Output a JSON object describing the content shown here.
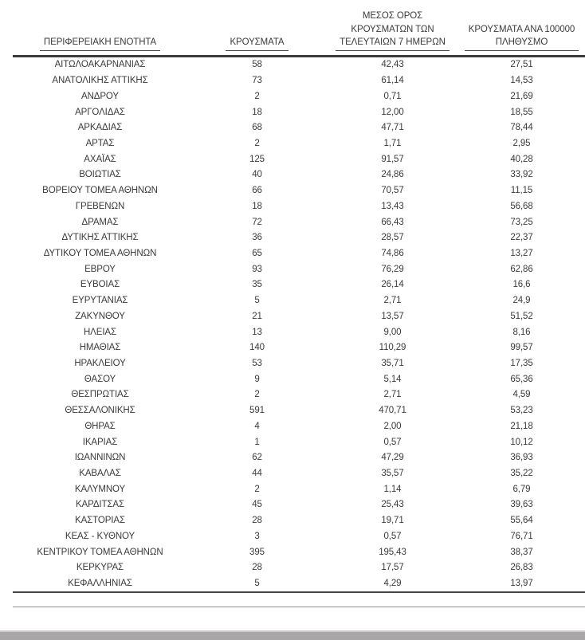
{
  "colors": {
    "text": "#3b3b3b",
    "rule": "#3a3a3a",
    "footnote_rule": "#8f8f8f",
    "bottom_bar": "#a8a6a6"
  },
  "table": {
    "headers": {
      "region": "ΠΕΡΙΦΕΡΕΙΑΚΗ ΕΝΟΤΗΤΑ",
      "cases": "ΚΡΟΥΣΜΑΤΑ",
      "avg7": "ΜΕΣΟΣ ΟΡΟΣ\nΚΡΟΥΣΜΑΤΩΝ ΤΩΝ\nΤΕΛΕΥΤΑΙΩΝ 7 ΗΜΕΡΩΝ",
      "per100k": "ΚΡΟΥΣΜΑΤΑ ΑΝΑ 100000\nΠΛΗΘΥΣΜΟ"
    },
    "rows": [
      {
        "region": "ΑΙΤΩΛΟΑΚΑΡΝΑΝΙΑΣ",
        "cases": "58",
        "avg7": "42,43",
        "per100k": "27,51"
      },
      {
        "region": "ΑΝΑΤΟΛΙΚΗΣ ΑΤΤΙΚΗΣ",
        "cases": "73",
        "avg7": "61,14",
        "per100k": "14,53"
      },
      {
        "region": "ΑΝΔΡΟΥ",
        "cases": "2",
        "avg7": "0,71",
        "per100k": "21,69"
      },
      {
        "region": "ΑΡΓΟΛΙΔΑΣ",
        "cases": "18",
        "avg7": "12,00",
        "per100k": "18,55"
      },
      {
        "region": "ΑΡΚΑΔΙΑΣ",
        "cases": "68",
        "avg7": "47,71",
        "per100k": "78,44"
      },
      {
        "region": "ΑΡΤΑΣ",
        "cases": "2",
        "avg7": "1,71",
        "per100k": "2,95"
      },
      {
        "region": "ΑΧΑΪΑΣ",
        "cases": "125",
        "avg7": "91,57",
        "per100k": "40,28"
      },
      {
        "region": "ΒΟΙΩΤΙΑΣ",
        "cases": "40",
        "avg7": "24,86",
        "per100k": "33,92"
      },
      {
        "region": "ΒΟΡΕΙΟΥ ΤΟΜΕΑ ΑΘΗΝΩΝ",
        "cases": "66",
        "avg7": "70,57",
        "per100k": "11,15"
      },
      {
        "region": "ΓΡΕΒΕΝΩΝ",
        "cases": "18",
        "avg7": "13,43",
        "per100k": "56,68"
      },
      {
        "region": "ΔΡΑΜΑΣ",
        "cases": "72",
        "avg7": "66,43",
        "per100k": "73,25"
      },
      {
        "region": "ΔΥΤΙΚΗΣ ΑΤΤΙΚΗΣ",
        "cases": "36",
        "avg7": "28,57",
        "per100k": "22,37"
      },
      {
        "region": "ΔΥΤΙΚΟΥ ΤΟΜΕΑ ΑΘΗΝΩΝ",
        "cases": "65",
        "avg7": "74,86",
        "per100k": "13,27"
      },
      {
        "region": "ΕΒΡΟΥ",
        "cases": "93",
        "avg7": "76,29",
        "per100k": "62,86"
      },
      {
        "region": "ΕΥΒΟΙΑΣ",
        "cases": "35",
        "avg7": "26,14",
        "per100k": "16,6"
      },
      {
        "region": "ΕΥΡΥΤΑΝΙΑΣ",
        "cases": "5",
        "avg7": "2,71",
        "per100k": "24,9"
      },
      {
        "region": "ΖΑΚΥΝΘΟΥ",
        "cases": "21",
        "avg7": "13,57",
        "per100k": "51,52"
      },
      {
        "region": "ΗΛΕΙΑΣ",
        "cases": "13",
        "avg7": "9,00",
        "per100k": "8,16"
      },
      {
        "region": "ΗΜΑΘΙΑΣ",
        "cases": "140",
        "avg7": "110,29",
        "per100k": "99,57"
      },
      {
        "region": "ΗΡΑΚΛΕΙΟΥ",
        "cases": "53",
        "avg7": "35,71",
        "per100k": "17,35"
      },
      {
        "region": "ΘΑΣΟΥ",
        "cases": "9",
        "avg7": "5,14",
        "per100k": "65,36"
      },
      {
        "region": "ΘΕΣΠΡΩΤΙΑΣ",
        "cases": "2",
        "avg7": "2,71",
        "per100k": "4,59"
      },
      {
        "region": "ΘΕΣΣΑΛΟΝΙΚΗΣ",
        "cases": "591",
        "avg7": "470,71",
        "per100k": "53,23"
      },
      {
        "region": "ΘΗΡΑΣ",
        "cases": "4",
        "avg7": "2,00",
        "per100k": "21,18"
      },
      {
        "region": "ΙΚΑΡΙΑΣ",
        "cases": "1",
        "avg7": "0,57",
        "per100k": "10,12"
      },
      {
        "region": "ΙΩΑΝΝΙΝΩΝ",
        "cases": "62",
        "avg7": "47,29",
        "per100k": "36,93"
      },
      {
        "region": "ΚΑΒΑΛΑΣ",
        "cases": "44",
        "avg7": "35,57",
        "per100k": "35,22"
      },
      {
        "region": "ΚΑΛΥΜΝΟΥ",
        "cases": "2",
        "avg7": "1,14",
        "per100k": "6,79"
      },
      {
        "region": "ΚΑΡΔΙΤΣΑΣ",
        "cases": "45",
        "avg7": "25,43",
        "per100k": "39,63"
      },
      {
        "region": "ΚΑΣΤΟΡΙΑΣ",
        "cases": "28",
        "avg7": "19,71",
        "per100k": "55,64"
      },
      {
        "region": "ΚΕΑΣ - ΚΥΘΝΟΥ",
        "cases": "3",
        "avg7": "0,57",
        "per100k": "76,71"
      },
      {
        "region": "ΚΕΝΤΡΙΚΟΥ ΤΟΜΕΑ ΑΘΗΝΩΝ",
        "cases": "395",
        "avg7": "195,43",
        "per100k": "38,37"
      },
      {
        "region": "ΚΕΡΚΥΡΑΣ",
        "cases": "28",
        "avg7": "17,57",
        "per100k": "26,83"
      },
      {
        "region": "ΚΕΦΑΛΛΗΝΙΑΣ",
        "cases": "5",
        "avg7": "4,29",
        "per100k": "13,97"
      }
    ]
  }
}
